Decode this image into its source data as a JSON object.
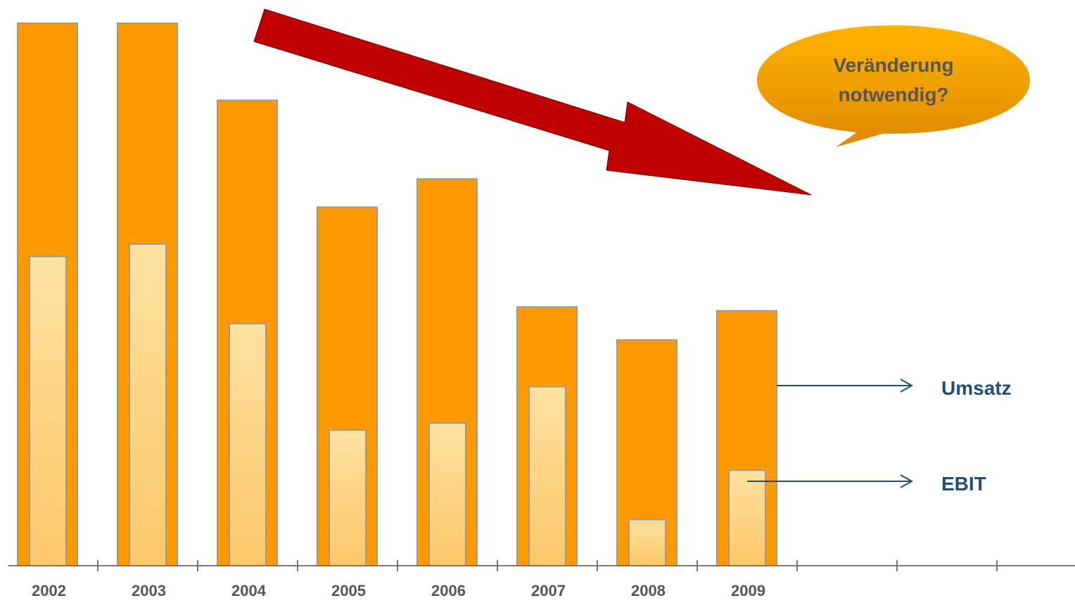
{
  "chart_data": {
    "type": "bar",
    "categories": [
      "2002",
      "2003",
      "2004",
      "2005",
      "2006",
      "2007",
      "2008",
      "2009"
    ],
    "series": [
      {
        "name": "Umsatz",
        "values": [
          100,
          100,
          85.8,
          66.1,
          71.3,
          47.7,
          41.6,
          47.0
        ]
      },
      {
        "name": "EBIT",
        "values": [
          57.0,
          59.3,
          44.6,
          25.0,
          26.3,
          33.0,
          8.5,
          17.6
        ]
      }
    ],
    "ylim": [
      0,
      100
    ],
    "grid": false,
    "annotation": "Veränderung notwendig?",
    "annotation_lines": [
      "Veränderung",
      "notwendig?"
    ],
    "colors": {
      "umsatz": "#ff9900",
      "ebit_top": "#fde1a0",
      "ebit_bottom": "#fcc868",
      "arrow": "#c00000",
      "legend": "#1f4e79",
      "bubble_top": "#ffb300",
      "bubble_bottom": "#e08800"
    }
  }
}
